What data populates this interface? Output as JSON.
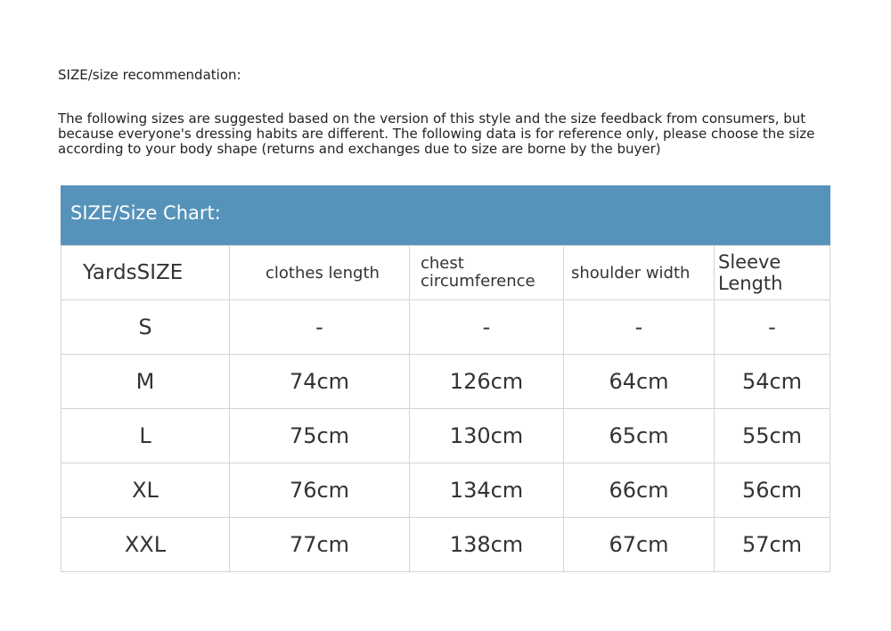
{
  "title": "SIZE/size recommendation:",
  "intro": "The following sizes are suggested based on the version of this style and the size feedback from consumers, but because everyone's dressing habits are different. The following data is for reference only, please choose the size according to your body shape (returns and exchanges due to size are borne by the buyer)",
  "table": {
    "banner": "SIZE/Size Chart:",
    "accent": "#5593ba",
    "headers": [
      "YardsSIZE",
      "clothes length",
      "chest circumference",
      "shoulder width",
      "Sleeve Length"
    ],
    "rows": [
      [
        "S",
        "-",
        "-",
        "-",
        "-"
      ],
      [
        "M",
        "74cm",
        "126cm",
        "64cm",
        "54cm"
      ],
      [
        "L",
        "75cm",
        "130cm",
        "65cm",
        "55cm"
      ],
      [
        "XL",
        "76cm",
        "134cm",
        "66cm",
        "56cm"
      ],
      [
        "XXL",
        "77cm",
        "138cm",
        "67cm",
        "57cm"
      ]
    ]
  }
}
